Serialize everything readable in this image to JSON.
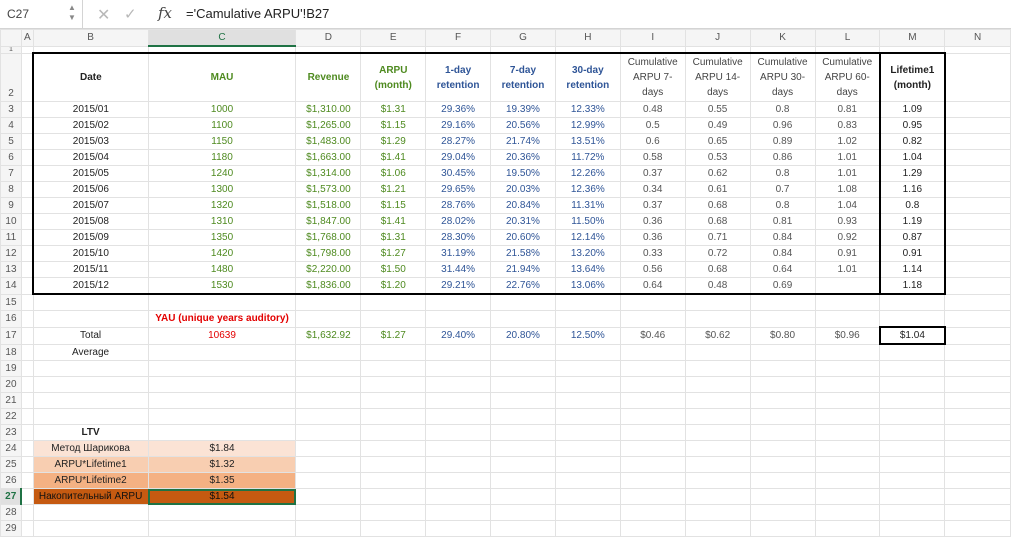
{
  "formula_bar": {
    "name_box": "C27",
    "fx_label": "fx",
    "formula": "='Camulative ARPU'!B27"
  },
  "columns": [
    "A",
    "B",
    "C",
    "D",
    "E",
    "F",
    "G",
    "H",
    "I",
    "J",
    "K",
    "L",
    "M",
    "N"
  ],
  "rows": [
    "1",
    "2",
    "3",
    "4",
    "5",
    "6",
    "7",
    "8",
    "9",
    "10",
    "11",
    "12",
    "13",
    "14",
    "15",
    "16",
    "17",
    "18",
    "19",
    "20",
    "21",
    "22",
    "23",
    "24",
    "25",
    "26",
    "27",
    "28",
    "29"
  ],
  "active_cell": {
    "column": "C",
    "row": "27"
  },
  "table": {
    "headers": {
      "date": "Date",
      "mau": "MAU",
      "revenue": "Revenue",
      "arpu": "ARPU (month)",
      "ret1": "1-day retention",
      "ret7": "7-day retention",
      "ret30": "30-day retention",
      "cum7": "Cumulative ARPU 7-days",
      "cum14": "Cumulative ARPU 14-days",
      "cum30": "Cumulative ARPU 30-days",
      "cum60": "Cumulative ARPU 60-days",
      "lifetime": "Lifetime1 (month)"
    },
    "data": [
      [
        "2015/01",
        "1000",
        "$1,310.00",
        "$1.31",
        "29.36%",
        "19.39%",
        "12.33%",
        "0.48",
        "0.55",
        "0.8",
        "0.81",
        "1.09"
      ],
      [
        "2015/02",
        "1100",
        "$1,265.00",
        "$1.15",
        "29.16%",
        "20.56%",
        "12.99%",
        "0.5",
        "0.49",
        "0.96",
        "0.83",
        "0.95"
      ],
      [
        "2015/03",
        "1150",
        "$1,483.00",
        "$1.29",
        "28.27%",
        "21.74%",
        "13.51%",
        "0.6",
        "0.65",
        "0.89",
        "1.02",
        "0.82"
      ],
      [
        "2015/04",
        "1180",
        "$1,663.00",
        "$1.41",
        "29.04%",
        "20.36%",
        "11.72%",
        "0.58",
        "0.53",
        "0.86",
        "1.01",
        "1.04"
      ],
      [
        "2015/05",
        "1240",
        "$1,314.00",
        "$1.06",
        "30.45%",
        "19.50%",
        "12.26%",
        "0.37",
        "0.62",
        "0.8",
        "1.01",
        "1.29"
      ],
      [
        "2015/06",
        "1300",
        "$1,573.00",
        "$1.21",
        "29.65%",
        "20.03%",
        "12.36%",
        "0.34",
        "0.61",
        "0.7",
        "1.08",
        "1.16"
      ],
      [
        "2015/07",
        "1320",
        "$1,518.00",
        "$1.15",
        "28.76%",
        "20.84%",
        "11.31%",
        "0.37",
        "0.68",
        "0.8",
        "1.04",
        "0.8"
      ],
      [
        "2015/08",
        "1310",
        "$1,847.00",
        "$1.41",
        "28.02%",
        "20.31%",
        "11.50%",
        "0.36",
        "0.68",
        "0.81",
        "0.93",
        "1.19"
      ],
      [
        "2015/09",
        "1350",
        "$1,768.00",
        "$1.31",
        "28.30%",
        "20.60%",
        "12.14%",
        "0.36",
        "0.71",
        "0.84",
        "0.92",
        "0.87"
      ],
      [
        "2015/10",
        "1420",
        "$1,798.00",
        "$1.27",
        "31.19%",
        "21.58%",
        "13.20%",
        "0.33",
        "0.72",
        "0.84",
        "0.91",
        "0.91"
      ],
      [
        "2015/11",
        "1480",
        "$2,220.00",
        "$1.50",
        "31.44%",
        "21.94%",
        "13.64%",
        "0.56",
        "0.68",
        "0.64",
        "1.01",
        "1.14"
      ],
      [
        "2015/12",
        "1530",
        "$1,836.00",
        "$1.20",
        "29.21%",
        "22.76%",
        "13.06%",
        "0.64",
        "0.48",
        "0.69",
        "",
        "1.18"
      ]
    ]
  },
  "yau_label": "YAU (unique years auditory)",
  "totals": {
    "label": "Total",
    "label2": "Average",
    "values": [
      "10639",
      "$1,632.92",
      "$1.27",
      "29.40%",
      "20.80%",
      "12.50%",
      "$0.46",
      "$0.62",
      "$0.80",
      "$0.96",
      "$1.04"
    ]
  },
  "ltv": {
    "title": "LTV",
    "rows": [
      {
        "label": "Метод Шарикова",
        "value": "$1.84"
      },
      {
        "label": "ARPU*Lifetime1",
        "value": "$1.32"
      },
      {
        "label": "ARPU*Lifetime2",
        "value": "$1.35"
      },
      {
        "label": "Накопительный ARPU",
        "value": "$1.54"
      }
    ]
  },
  "colors": {
    "green_text": "#4e8a1f",
    "blue_text": "#2f5597",
    "red_text": "#e30000",
    "ltv_fill_1": "#fbe3d5",
    "ltv_fill_2": "#f8ceb1",
    "ltv_fill_3": "#f4b183",
    "ltv_fill_4": "#c55a11",
    "selection": "#1f7244"
  }
}
